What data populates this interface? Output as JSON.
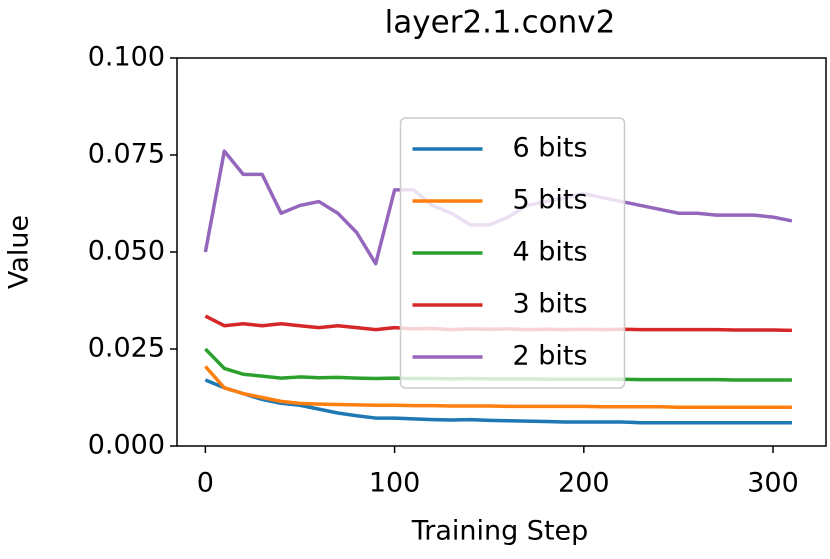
{
  "chart_data": {
    "type": "line",
    "title": "layer2.1.conv2",
    "x_label": "Training Step",
    "y_label": "Value",
    "x": [
      0,
      10,
      20,
      30,
      40,
      50,
      60,
      70,
      80,
      90,
      100,
      110,
      120,
      130,
      140,
      150,
      160,
      170,
      180,
      190,
      200,
      210,
      220,
      230,
      240,
      250,
      260,
      270,
      280,
      290,
      300,
      310
    ],
    "series": [
      {
        "name": "6 bits",
        "color": "#1f77b4",
        "values": [
          0.017,
          0.015,
          0.0135,
          0.012,
          0.011,
          0.0105,
          0.0095,
          0.0085,
          0.0078,
          0.0072,
          0.0072,
          0.007,
          0.0068,
          0.0067,
          0.0068,
          0.0066,
          0.0065,
          0.0064,
          0.0063,
          0.0062,
          0.0062,
          0.0062,
          0.0062,
          0.006,
          0.006,
          0.006,
          0.006,
          0.006,
          0.006,
          0.006,
          0.006,
          0.006
        ]
      },
      {
        "name": "5 bits",
        "color": "#ff7f0e",
        "values": [
          0.0205,
          0.015,
          0.0135,
          0.0125,
          0.0115,
          0.011,
          0.0108,
          0.0107,
          0.0106,
          0.0105,
          0.0105,
          0.0104,
          0.0104,
          0.0103,
          0.0103,
          0.0103,
          0.0102,
          0.0102,
          0.0102,
          0.0102,
          0.0102,
          0.0101,
          0.0101,
          0.0101,
          0.0101,
          0.01,
          0.01,
          0.01,
          0.01,
          0.01,
          0.01,
          0.01
        ]
      },
      {
        "name": "4 bits",
        "color": "#2ca02c",
        "values": [
          0.025,
          0.02,
          0.0185,
          0.018,
          0.0175,
          0.0178,
          0.0176,
          0.0177,
          0.0175,
          0.0174,
          0.0175,
          0.0174,
          0.0174,
          0.0173,
          0.0174,
          0.0173,
          0.0173,
          0.0173,
          0.0172,
          0.0172,
          0.0172,
          0.0172,
          0.0172,
          0.0171,
          0.0171,
          0.0171,
          0.0171,
          0.0171,
          0.017,
          0.017,
          0.017,
          0.017
        ]
      },
      {
        "name": "3 bits",
        "color": "#d62728",
        "values": [
          0.0335,
          0.031,
          0.0315,
          0.031,
          0.0315,
          0.031,
          0.0305,
          0.031,
          0.0305,
          0.03,
          0.0305,
          0.0302,
          0.0303,
          0.03,
          0.0302,
          0.0301,
          0.0302,
          0.03,
          0.0301,
          0.03,
          0.0301,
          0.03,
          0.0301,
          0.03,
          0.03,
          0.03,
          0.03,
          0.03,
          0.0299,
          0.0299,
          0.0299,
          0.0298
        ]
      },
      {
        "name": "2 bits",
        "color": "#9467bd",
        "values": [
          0.05,
          0.076,
          0.07,
          0.07,
          0.06,
          0.062,
          0.063,
          0.06,
          0.055,
          0.047,
          0.066,
          0.066,
          0.062,
          0.06,
          0.057,
          0.057,
          0.059,
          0.062,
          0.063,
          0.064,
          0.065,
          0.064,
          0.063,
          0.062,
          0.061,
          0.06,
          0.06,
          0.0595,
          0.0595,
          0.0595,
          0.059,
          0.058
        ]
      }
    ],
    "xlim": [
      -15,
      328
    ],
    "ylim": [
      0,
      0.1
    ],
    "xticks": [
      0,
      100,
      200,
      300
    ],
    "yticks": [
      {
        "value": 0,
        "label": "0.000"
      },
      {
        "value": 0.025,
        "label": "0.025"
      },
      {
        "value": 0.05,
        "label": "0.050"
      },
      {
        "value": 0.075,
        "label": "0.075"
      },
      {
        "value": 0.1,
        "label": "0.100"
      }
    ],
    "legend": "upper center"
  }
}
